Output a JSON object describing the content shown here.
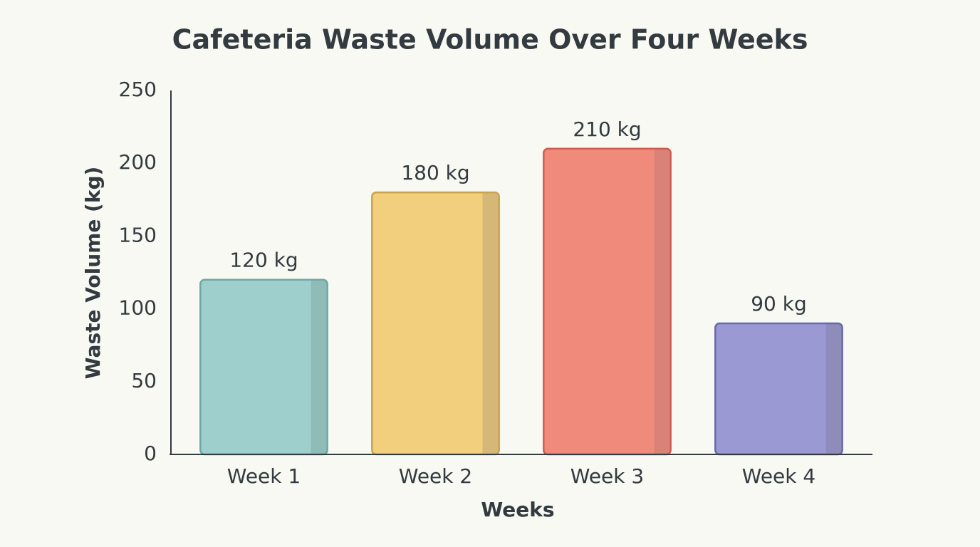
{
  "chart_data": {
    "type": "bar",
    "title": "Cafeteria Waste Volume Over Four Weeks",
    "x_label": "Weeks",
    "y_label": "Waste Volume (kg)",
    "categories": [
      "Week 1",
      "Week 2",
      "Week 3",
      "Week 4"
    ],
    "values": [
      120,
      180,
      210,
      90
    ],
    "value_labels": [
      "120 kg",
      "180 kg",
      "210 kg",
      "90 kg"
    ],
    "colors": [
      "#9fcfcc",
      "#f2cf7c",
      "#f08b7c",
      "#9b99d4"
    ],
    "edge_colors": [
      "#6ea7a4",
      "#c9a24c",
      "#cf5b50",
      "#6b68a8"
    ],
    "ylim": [
      0,
      250
    ],
    "yticks": [
      0,
      50,
      100,
      150,
      200,
      250
    ],
    "grid": false
  }
}
